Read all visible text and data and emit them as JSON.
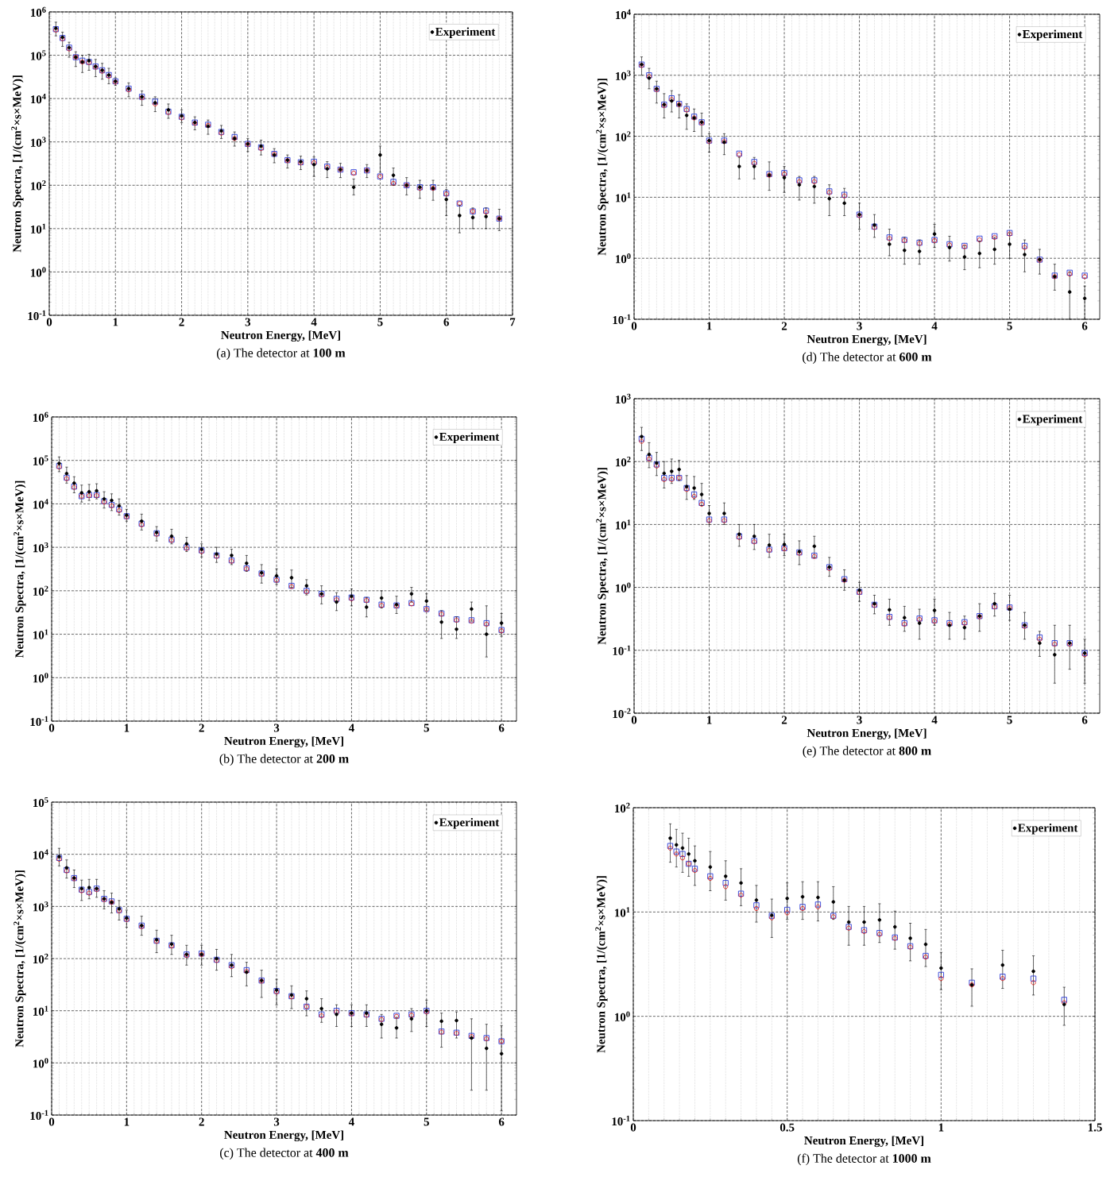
{
  "chart_data": [
    {
      "type": "scatter",
      "title": "(a) The detector at **100 m**",
      "xlabel": "Neutron Energy, [MeV]",
      "ylabel": "Neutron Spectra, [1/(cm$^{2}$×s×MeV)]",
      "x": [
        0.1,
        0.2,
        0.3,
        0.4,
        0.5,
        0.6,
        0.7,
        0.8,
        0.9,
        1.0,
        1.2,
        1.4,
        1.6,
        1.8,
        2.0,
        2.2,
        2.4,
        2.6,
        2.8,
        3.0,
        3.2,
        3.4,
        3.6,
        3.8,
        4.0,
        4.2,
        4.4,
        4.6,
        4.8,
        5.0,
        5.2,
        5.4,
        5.6,
        5.8,
        6.0,
        6.2,
        6.4,
        6.6,
        6.8
      ],
      "series": [
        {
          "color": "#2b3bd6",
          "marker": "square",
          "values": [
            400000.0,
            250000.0,
            150000.0,
            90000.0,
            75000.0,
            70000.0,
            55000.0,
            45000.0,
            35000.0,
            25000.0,
            17000.0,
            11000.0,
            8500.0,
            5000.0,
            3800.0,
            2800.0,
            2500.0,
            1700.0,
            1300.0,
            900,
            750,
            530,
            380,
            340,
            350,
            270,
            230,
            200,
            220,
            160,
            120,
            100,
            90,
            90,
            65,
            38,
            25,
            26,
            17
          ]
        },
        {
          "color": "#e0201b",
          "marker": "circle",
          "values": [
            380000.0,
            240000.0,
            140000.0,
            90000.0,
            70000.0,
            68000.0,
            53000.0,
            43000.0,
            33000.0,
            24000.0,
            16000.0,
            10500.0,
            7500.0,
            4800.0,
            3600.0,
            2700.0,
            2400.0,
            1600.0,
            1200.0,
            880,
            700,
            520,
            370,
            330,
            330,
            260,
            230,
            190,
            220,
            160,
            110,
            100,
            85,
            85,
            63,
            38,
            25,
            24,
            17
          ]
        },
        {
          "name": "Experiment",
          "color": "#000000",
          "marker": "circle",
          "values": [
            420000.0,
            260000.0,
            150000.0,
            90000.0,
            70000.0,
            75000.0,
            55000.0,
            45000.0,
            35000.0,
            25000.0,
            17000.0,
            11000.0,
            8000.0,
            5500.0,
            4000.0,
            2800.0,
            2300.0,
            1800.0,
            1200.0,
            900,
            800,
            500,
            380,
            350,
            300,
            240,
            230,
            90,
            220,
            500,
            170,
            100,
            90,
            85,
            47,
            20,
            18,
            19,
            17
          ],
          "errors": [
            [
              280000.0,
              580000.0
            ],
            [
              160000.0,
              340000.0
            ],
            [
              90000.0,
              200000.0
            ],
            [
              55000.0,
              120000.0
            ],
            [
              40000.0,
              100000.0
            ],
            [
              45000.0,
              105000.0
            ],
            [
              32000.0,
              80000.0
            ],
            [
              28000.0,
              65000.0
            ],
            [
              22000.0,
              50000.0
            ],
            [
              20000.0,
              30000.0
            ],
            [
              11000.0,
              23000.0
            ],
            [
              7000.0,
              15000.0
            ],
            [
              5000.0,
              11000.0
            ],
            [
              3500.0,
              7500.0
            ],
            [
              2800.0,
              5500.0
            ],
            [
              1900.0,
              3800.0
            ],
            [
              1500.0,
              3200.0
            ],
            [
              1200.0,
              2400.0
            ],
            [
              800,
              1700.0
            ],
            [
              600,
              1200.0
            ],
            [
              500,
              1100.0
            ],
            [
              330,
              700
            ],
            [
              250,
              500
            ],
            [
              230,
              470
            ],
            [
              160,
              450
            ],
            [
              150,
              350
            ],
            [
              150,
              320
            ],
            [
              60,
              140
            ],
            [
              150,
              300
            ],
            [
              200,
              800
            ],
            [
              100,
              250
            ],
            [
              60,
              150
            ],
            [
              50,
              130
            ],
            [
              45,
              130
            ],
            [
              20,
              80
            ],
            [
              8,
              35
            ],
            [
              10,
              30
            ],
            [
              10,
              30
            ],
            [
              9,
              28
            ]
          ]
        }
      ],
      "xlim": [
        0,
        7
      ],
      "ylim": [
        0.1,
        1000000.0
      ],
      "xticks": [
        0,
        1,
        2,
        3,
        4,
        5,
        6,
        7
      ],
      "yticks": [
        {
          "value": 0.1,
          "label": "10$^{-1}$"
        },
        {
          "value": 1,
          "label": "10$^{0}$"
        },
        {
          "value": 10,
          "label": "10$^{1}$"
        },
        {
          "value": 100,
          "label": "10$^{2}$"
        },
        {
          "value": 1000,
          "label": "10$^{3}$"
        },
        {
          "value": 10000,
          "label": "10$^{4}$"
        },
        {
          "value": 100000,
          "label": "10$^{5}$"
        },
        {
          "value": 1000000,
          "label": "10$^{6}$"
        }
      ],
      "log": "y",
      "grid": true,
      "legend": "top right"
    },
    {
      "type": "scatter",
      "title": "(d) The detector at **600 m**",
      "xlabel": "Neutron Energy, [MeV]",
      "ylabel": "Neutron Spectra, [1/(cm$^{2}$×s×MeV)]",
      "x": [
        0.1,
        0.2,
        0.3,
        0.4,
        0.5,
        0.6,
        0.7,
        0.8,
        0.9,
        1.0,
        1.2,
        1.4,
        1.6,
        1.8,
        2.0,
        2.2,
        2.4,
        2.6,
        2.8,
        3.0,
        3.2,
        3.4,
        3.6,
        3.8,
        4.0,
        4.2,
        4.4,
        4.6,
        4.8,
        5.0,
        5.2,
        5.4,
        5.6,
        5.8,
        6.0
      ],
      "series": [
        {
          "color": "#2b3bd6",
          "marker": "square",
          "values": [
            1500.0,
            1000.0,
            600,
            330,
            420,
            340,
            280,
            210,
            170,
            85,
            85,
            52,
            38,
            24,
            25,
            19,
            19,
            12.5,
            11,
            5.2,
            3.3,
            2.2,
            2,
            1.8,
            2,
            1.7,
            1.6,
            2.1,
            2.3,
            2.6,
            1.6,
            0.95,
            0.52,
            0.58,
            0.52
          ]
        },
        {
          "color": "#e0201b",
          "marker": "circle",
          "values": [
            1450.0,
            950,
            580,
            320,
            400,
            330,
            270,
            200,
            165,
            82,
            82,
            50,
            36,
            23,
            24,
            18,
            18,
            12,
            10.5,
            5,
            3.2,
            2.1,
            1.95,
            1.75,
            1.95,
            1.65,
            1.55,
            2,
            2.2,
            2.5,
            1.5,
            0.93,
            0.5,
            0.55,
            0.5
          ]
        },
        {
          "name": "Experiment",
          "color": "#000000",
          "marker": "circle",
          "values": [
            1500.0,
            900,
            600,
            330,
            380,
            330,
            220,
            200,
            170,
            85,
            80,
            32,
            32,
            23,
            21,
            16,
            15,
            9.5,
            8,
            5.2,
            3.5,
            1.7,
            1.35,
            1.3,
            2.5,
            1.5,
            1.05,
            1.2,
            1.4,
            1.7,
            1.15,
            0.95,
            0.5,
            0.28,
            0.22
          ],
          "errors": [
            [
              1000.0,
              2000.0
            ],
            [
              600,
              1300.0
            ],
            [
              350,
              800
            ],
            [
              200,
              500
            ],
            [
              250,
              560
            ],
            [
              200,
              480
            ],
            [
              130,
              340
            ],
            [
              120,
              280
            ],
            [
              100,
              240
            ],
            [
              55,
              110
            ],
            [
              50,
              110
            ],
            [
              20,
              45
            ],
            [
              20,
              45
            ],
            [
              13,
              38
            ],
            [
              12,
              32
            ],
            [
              9,
              22
            ],
            [
              8,
              22
            ],
            [
              5,
              16
            ],
            [
              5,
              14
            ],
            [
              3,
              8
            ],
            [
              2.2,
              5.2
            ],
            [
              1.1,
              3
            ],
            [
              0.8,
              2.2
            ],
            [
              0.8,
              2
            ],
            [
              1.5,
              3.6
            ],
            [
              0.9,
              2.3
            ],
            [
              0.65,
              1.6
            ],
            [
              0.7,
              1.9
            ],
            [
              0.8,
              2.2
            ],
            [
              1,
              2.6
            ],
            [
              0.6,
              2
            ],
            [
              0.55,
              1.4
            ],
            [
              0.3,
              0.8
            ],
            [
              0.1,
              0.6
            ],
            [
              0.1,
              0.35
            ]
          ]
        }
      ],
      "xlim": [
        0,
        6.2
      ],
      "ylim": [
        0.1,
        10000.0
      ],
      "xticks": [
        0,
        1,
        2,
        3,
        4,
        5,
        6
      ],
      "yticks": [
        {
          "value": 0.1,
          "label": "10$^{-1}$"
        },
        {
          "value": 1,
          "label": "10$^{0}$"
        },
        {
          "value": 10,
          "label": "10$^{1}$"
        },
        {
          "value": 100,
          "label": "10$^{2}$"
        },
        {
          "value": 1000,
          "label": "10$^{3}$"
        },
        {
          "value": 10000,
          "label": "10$^{4}$"
        }
      ],
      "log": "y",
      "grid": true,
      "legend": "top right"
    },
    {
      "type": "scatter",
      "title": "(b) The detector at **200 m**",
      "xlabel": "Neutron Energy, [MeV]",
      "ylabel": "Neutron Spectra, [1/(cm$^{2}$×s×MeV)]",
      "x": [
        0.1,
        0.2,
        0.3,
        0.4,
        0.5,
        0.6,
        0.7,
        0.8,
        0.9,
        1.0,
        1.2,
        1.4,
        1.6,
        1.8,
        2.0,
        2.2,
        2.4,
        2.6,
        2.8,
        3.0,
        3.2,
        3.4,
        3.6,
        3.8,
        4.0,
        4.2,
        4.4,
        4.6,
        4.8,
        5.0,
        5.2,
        5.4,
        5.6,
        5.8,
        6.0
      ],
      "series": [
        {
          "color": "#2b3bd6",
          "marker": "square",
          "values": [
            75000.0,
            40000.0,
            25000.0,
            15000.0,
            16000.0,
            16000.0,
            11500.0,
            9500.0,
            7500.0,
            5200.0,
            3500.0,
            2100.0,
            1500.0,
            1000.0,
            850,
            650,
            500,
            330,
            250,
            180,
            130,
            100,
            85,
            65,
            70,
            62,
            48,
            46,
            52,
            38,
            30,
            22,
            21,
            18,
            12.5
          ]
        },
        {
          "color": "#e0201b",
          "marker": "circle",
          "values": [
            70000.0,
            38000.0,
            24000.0,
            15000.0,
            15500.0,
            15500.0,
            11000.0,
            9000.0,
            7000.0,
            5000.0,
            3300.0,
            2000.0,
            1450.0,
            950,
            800,
            620,
            480,
            320,
            240,
            175,
            125,
            95,
            80,
            62,
            65,
            60,
            46,
            45,
            50,
            37,
            29,
            21,
            20,
            17,
            12
          ]
        },
        {
          "name": "Experiment",
          "color": "#000000",
          "marker": "circle",
          "values": [
            85000.0,
            50000.0,
            30000.0,
            18000.0,
            19000.0,
            20000.0,
            13000.0,
            12000.0,
            9000.0,
            5500.0,
            4000.0,
            2200.0,
            1800.0,
            1200.0,
            900,
            700,
            650,
            430,
            260,
            220,
            200,
            130,
            85,
            55,
            75,
            42,
            68,
            48,
            85,
            58,
            19,
            13,
            38,
            10,
            18
          ],
          "errors": [
            [
              55000.0,
              120000.0
            ],
            [
              30000.0,
              70000.0
            ],
            [
              18000.0,
              42000.0
            ],
            [
              11000.0,
              27000.0
            ],
            [
              12000.0,
              28000.0
            ],
            [
              13000.0,
              29000.0
            ],
            [
              8000.0,
              19000.0
            ],
            [
              7000.0,
              17000.0
            ],
            [
              5500.0,
              13000.0
            ],
            [
              4000.0,
              7500.0
            ],
            [
              2500.0,
              5800.0
            ],
            [
              1400.0,
              3000.0
            ],
            [
              1200.0,
              2600.0
            ],
            [
              800,
              1700.0
            ],
            [
              600,
              1200.0
            ],
            [
              450,
              1000.0
            ],
            [
              400,
              900
            ],
            [
              280,
              650
            ],
            [
              150,
              400
            ],
            [
              140,
              320
            ],
            [
              120,
              300
            ],
            [
              80,
              180
            ],
            [
              50,
              130
            ],
            [
              35,
              90
            ],
            [
              45,
              110
            ],
            [
              25,
              70
            ],
            [
              40,
              100
            ],
            [
              30,
              75
            ],
            [
              55,
              120
            ],
            [
              35,
              85
            ],
            [
              8,
              35
            ],
            [
              8,
              25
            ],
            [
              20,
              55
            ],
            [
              3,
              45
            ],
            [
              9,
              30
            ]
          ]
        }
      ],
      "xlim": [
        0,
        6.2
      ],
      "ylim": [
        0.1,
        1000000.0
      ],
      "xticks": [
        0,
        1,
        2,
        3,
        4,
        5,
        6
      ],
      "yticks": [
        {
          "value": 0.1,
          "label": "10$^{-1}$"
        },
        {
          "value": 1,
          "label": "10$^{0}$"
        },
        {
          "value": 10,
          "label": "10$^{1}$"
        },
        {
          "value": 100,
          "label": "10$^{2}$"
        },
        {
          "value": 1000,
          "label": "10$^{3}$"
        },
        {
          "value": 10000,
          "label": "10$^{4}$"
        },
        {
          "value": 100000,
          "label": "10$^{5}$"
        },
        {
          "value": 1000000,
          "label": "10$^{6}$"
        }
      ],
      "log": "y",
      "grid": true,
      "legend": "top right"
    },
    {
      "type": "scatter",
      "title": "(e) The detector at **800 m**",
      "xlabel": "Neutron Energy, [MeV]",
      "ylabel": "Neutron Spectra, [1/(cm$^{2}$×s×MeV)]",
      "x": [
        0.1,
        0.2,
        0.3,
        0.4,
        0.5,
        0.6,
        0.7,
        0.8,
        0.9,
        1.0,
        1.2,
        1.4,
        1.6,
        1.8,
        2.0,
        2.2,
        2.4,
        2.6,
        2.8,
        3.0,
        3.2,
        3.4,
        3.6,
        3.8,
        4.0,
        4.2,
        4.4,
        4.6,
        4.8,
        5.0,
        5.2,
        5.4,
        5.6,
        5.8,
        6.0
      ],
      "series": [
        {
          "color": "#2b3bd6",
          "marker": "square",
          "values": [
            230,
            115,
            90,
            55,
            55,
            55,
            38,
            30,
            22,
            12,
            12,
            6.5,
            5.5,
            4,
            4.2,
            3.6,
            3.2,
            2.1,
            1.35,
            0.85,
            0.53,
            0.34,
            0.27,
            0.32,
            0.3,
            0.27,
            0.28,
            0.35,
            0.5,
            0.48,
            0.25,
            0.16,
            0.13,
            0.13,
            0.09
          ]
        },
        {
          "color": "#e0201b",
          "marker": "circle",
          "values": [
            210,
            110,
            85,
            52,
            52,
            55,
            36,
            28,
            21,
            11.5,
            11.5,
            6.2,
            5.3,
            3.9,
            4.1,
            3.5,
            3.1,
            2,
            1.3,
            0.83,
            0.52,
            0.33,
            0.26,
            0.31,
            0.29,
            0.26,
            0.27,
            0.34,
            0.49,
            0.47,
            0.24,
            0.15,
            0.125,
            0.125,
            0.085
          ]
        },
        {
          "name": "Experiment",
          "color": "#000000",
          "marker": "circle",
          "values": [
            250,
            130,
            95,
            65,
            70,
            75,
            40,
            38,
            30,
            15,
            15,
            7,
            6.5,
            4.7,
            4.8,
            3.7,
            4.5,
            2.1,
            1.3,
            0.9,
            0.55,
            0.44,
            0.33,
            0.27,
            0.43,
            0.25,
            0.23,
            0.35,
            0.55,
            0.45,
            0.25,
            0.13,
            0.085,
            0.13,
            0.09
          ],
          "errors": [
            [
              150,
              350
            ],
            [
              80,
              200
            ],
            [
              60,
              140
            ],
            [
              38,
              100
            ],
            [
              45,
              110
            ],
            [
              50,
              105
            ],
            [
              25,
              60
            ],
            [
              25,
              58
            ],
            [
              20,
              45
            ],
            [
              10,
              20
            ],
            [
              10,
              22
            ],
            [
              4.5,
              10
            ],
            [
              4,
              10
            ],
            [
              3,
              7
            ],
            [
              3.2,
              7
            ],
            [
              2.3,
              5.5
            ],
            [
              3,
              6.5
            ],
            [
              1.5,
              3
            ],
            [
              0.9,
              1.9
            ],
            [
              0.6,
              1.2
            ],
            [
              0.38,
              0.75
            ],
            [
              0.25,
              0.65
            ],
            [
              0.2,
              0.5
            ],
            [
              0.15,
              0.45
            ],
            [
              0.25,
              0.65
            ],
            [
              0.15,
              0.4
            ],
            [
              0.15,
              0.35
            ],
            [
              0.2,
              0.55
            ],
            [
              0.35,
              0.8
            ],
            [
              0.3,
              0.75
            ],
            [
              0.15,
              0.4
            ],
            [
              0.08,
              0.2
            ],
            [
              0.03,
              0.25
            ],
            [
              0.05,
              0.25
            ],
            [
              0.03,
              0.15
            ]
          ]
        }
      ],
      "xlim": [
        0,
        6.2
      ],
      "ylim": [
        0.01,
        1000
      ],
      "xticks": [
        0,
        1,
        2,
        3,
        4,
        5,
        6
      ],
      "yticks": [
        {
          "value": 0.01,
          "label": "10$^{-2}$"
        },
        {
          "value": 0.1,
          "label": "10$^{-1}$"
        },
        {
          "value": 1,
          "label": "10$^{0}$"
        },
        {
          "value": 10,
          "label": "10$^{1}$"
        },
        {
          "value": 100,
          "label": "10$^{2}$"
        },
        {
          "value": 1000,
          "label": "10$^{3}$"
        }
      ],
      "log": "y",
      "grid": true,
      "legend": "top right"
    },
    {
      "type": "scatter",
      "title": "(c) The detector at **400 m**",
      "xlabel": "Neutron Energy, [MeV]",
      "ylabel": "Neutron Spectra, [1/(cm$^{2}$×s×MeV)]",
      "x": [
        0.1,
        0.2,
        0.3,
        0.4,
        0.5,
        0.6,
        0.7,
        0.8,
        0.9,
        1.0,
        1.2,
        1.4,
        1.6,
        1.8,
        2.0,
        2.2,
        2.4,
        2.6,
        2.8,
        3.0,
        3.2,
        3.4,
        3.6,
        3.8,
        4.0,
        4.2,
        4.4,
        4.6,
        4.8,
        5.0,
        5.2,
        5.4,
        5.6,
        5.8,
        6.0
      ],
      "series": [
        {
          "color": "#2b3bd6",
          "marker": "square",
          "values": [
            8500.0,
            5000.0,
            3500.0,
            2100.0,
            1900.0,
            2200.0,
            1400.0,
            1250.0,
            850,
            580,
            430,
            220,
            180,
            120,
            125,
            95,
            75,
            60,
            38,
            24,
            19,
            12,
            8.5,
            10,
            9,
            8.5,
            7,
            8,
            8.5,
            10,
            4,
            3.8,
            3.3,
            3,
            2.6
          ]
        },
        {
          "color": "#e0201b",
          "marker": "circle",
          "values": [
            8000.0,
            4800.0,
            3400.0,
            2000.0,
            1800.0,
            2100.0,
            1350.0,
            1200.0,
            820,
            560,
            410,
            215,
            175,
            115,
            120,
            92,
            70,
            57,
            37,
            23,
            18.5,
            12,
            8,
            9.5,
            8.7,
            8.2,
            6.8,
            7.8,
            8.2,
            9.5,
            3.9,
            3.7,
            3.2,
            2.9,
            2.6
          ]
        },
        {
          "name": "Experiment",
          "color": "#000000",
          "marker": "circle",
          "values": [
            9000.0,
            5500.0,
            3500.0,
            2200.0,
            2300.0,
            2200.0,
            1400.0,
            1200.0,
            900,
            600,
            430,
            230,
            190,
            120,
            120,
            100,
            75,
            55,
            38,
            25,
            20,
            17,
            11,
            8.5,
            9,
            9,
            5.5,
            4.7,
            7,
            10,
            6.3,
            6.5,
            3,
            1.9,
            1.5
          ],
          "errors": [
            [
              6000.0,
              13000.0
            ],
            [
              3500.0,
              7800.0
            ],
            [
              2300.0,
              5000.0
            ],
            [
              1300.0,
              3200.0
            ],
            [
              1400.0,
              3300.0
            ],
            [
              1500.0,
              3300.0
            ],
            [
              900,
              2000.0
            ],
            [
              750,
              1800.0
            ],
            [
              550,
              1300.0
            ],
            [
              400,
              850
            ],
            [
              280,
              650
            ],
            [
              130,
              350
            ],
            [
              120,
              280
            ],
            [
              75,
              180
            ],
            [
              75,
              180
            ],
            [
              60,
              150
            ],
            [
              45,
              120
            ],
            [
              30,
              85
            ],
            [
              18,
              60
            ],
            [
              13,
              40
            ],
            [
              11,
              30
            ],
            [
              8,
              24
            ],
            [
              6,
              17
            ],
            [
              5,
              13
            ],
            [
              5,
              13
            ],
            [
              5,
              13
            ],
            [
              3,
              8.5
            ],
            [
              3,
              7.5
            ],
            [
              4,
              11
            ],
            [
              5,
              16
            ],
            [
              2,
              9
            ],
            [
              3,
              9.5
            ],
            [
              0.3,
              7
            ],
            [
              0.3,
              5.5
            ],
            [
              0.12,
              5.2
            ]
          ]
        }
      ],
      "xlim": [
        0,
        6.2
      ],
      "ylim": [
        0.1,
        100000.0
      ],
      "xticks": [
        0,
        1,
        2,
        3,
        4,
        5,
        6
      ],
      "yticks": [
        {
          "value": 0.1,
          "label": "10$^{-1}$"
        },
        {
          "value": 1,
          "label": "10$^{0}$"
        },
        {
          "value": 10,
          "label": "10$^{1}$"
        },
        {
          "value": 100,
          "label": "10$^{2}$"
        },
        {
          "value": 1000,
          "label": "10$^{3}$"
        },
        {
          "value": 10000,
          "label": "10$^{4}$"
        },
        {
          "value": 100000,
          "label": "10$^{5}$"
        }
      ],
      "log": "y",
      "grid": true,
      "legend": "top right"
    },
    {
      "type": "scatter",
      "title": "(f) The detector at **1000 m**",
      "xlabel": "Neutron Energy, [MeV]",
      "ylabel": "Neutron Spectra, [1/(cm$^{2}$×s×MeV)]",
      "x": [
        0.12,
        0.14,
        0.16,
        0.18,
        0.2,
        0.25,
        0.3,
        0.35,
        0.4,
        0.45,
        0.5,
        0.55,
        0.6,
        0.65,
        0.7,
        0.75,
        0.8,
        0.85,
        0.9,
        0.95,
        1.0,
        1.1,
        1.2,
        1.3,
        1.4
      ],
      "series": [
        {
          "color": "#2b3bd6",
          "marker": "square",
          "values": [
            43,
            38,
            36,
            29,
            26,
            22,
            19,
            15,
            11.6,
            9.2,
            10.5,
            11.2,
            11.8,
            9.2,
            7.2,
            6.7,
            6.3,
            5.7,
            4.7,
            3.8,
            2.5,
            2.1,
            2.4,
            2.3,
            1.44
          ]
        },
        {
          "color": "#e0201b",
          "marker": "circle",
          "values": [
            41,
            36,
            33,
            29,
            25,
            21,
            17.5,
            14.5,
            10.8,
            8.8,
            9.8,
            10.8,
            11.2,
            9,
            7,
            6.5,
            6.1,
            5.6,
            4.6,
            3.7,
            2.3,
            2.0,
            2.3,
            2.1,
            1.35
          ]
        },
        {
          "name": "Experiment",
          "color": "#000000",
          "marker": "circle",
          "values": [
            51,
            44,
            41,
            36,
            31,
            27,
            22,
            19,
            13,
            9.3,
            13.5,
            14,
            13.8,
            12.5,
            8,
            8,
            8.4,
            7.2,
            5.6,
            4.9,
            2.9,
            2,
            3.1,
            2.7,
            1.3
          ],
          "errors": [
            [
              30,
              70
            ],
            [
              27,
              62
            ],
            [
              24,
              57
            ],
            [
              22,
              51
            ],
            [
              18,
              43
            ],
            [
              16,
              38
            ],
            [
              13,
              31
            ],
            [
              11.5,
              26
            ],
            [
              8,
              18
            ],
            [
              5.7,
              13.3
            ],
            [
              8.5,
              19
            ],
            [
              8.5,
              19.5
            ],
            [
              8.2,
              19.5
            ],
            [
              8.5,
              17.5
            ],
            [
              4.8,
              11.3
            ],
            [
              4.8,
              11.3
            ],
            [
              5.1,
              12
            ],
            [
              4.4,
              10.2
            ],
            [
              3.4,
              7.8
            ],
            [
              3,
              6.8
            ],
            [
              1.8,
              4.1
            ],
            [
              1.25,
              2.85
            ],
            [
              1.85,
              4.3
            ],
            [
              1.6,
              3.8
            ],
            [
              0.82,
              1.9
            ]
          ]
        }
      ],
      "xlim": [
        0,
        1.5
      ],
      "ylim": [
        0.1,
        100
      ],
      "xticks": [
        0,
        0.5,
        1,
        1.5
      ],
      "yticks": [
        {
          "value": 0.1,
          "label": "10$^{-1}$"
        },
        {
          "value": 1,
          "label": "10$^{0}$"
        },
        {
          "value": 10,
          "label": "10$^{1}$"
        },
        {
          "value": 100,
          "label": "10$^{2}$"
        }
      ],
      "log": "y",
      "grid": true,
      "legend": "top right"
    }
  ]
}
